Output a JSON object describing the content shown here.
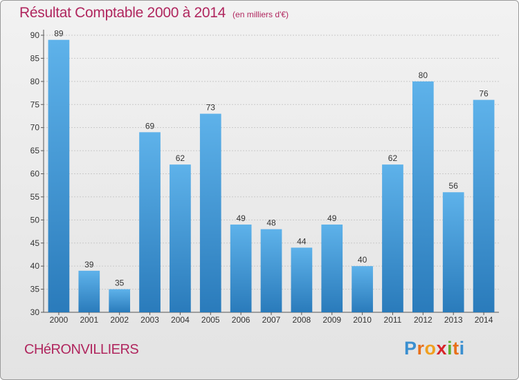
{
  "header": {
    "title": "Résultat Comptable 2000 à 2014",
    "subtitle": "(en milliers d'€)"
  },
  "footer": {
    "commune": "CHéRONVILLIERS",
    "logo_letters": [
      "P",
      "r",
      "o",
      "x",
      "i",
      "t",
      "i"
    ]
  },
  "colors": {
    "title": "#b0265e",
    "bar_top": "#5eb2ea",
    "bar_bottom": "#2a7bbb",
    "logo": [
      "#3a8fd0",
      "#e8701a",
      "#f0a020",
      "#d8242a",
      "#60b030",
      "#e8701a",
      "#3a8fd0"
    ]
  },
  "chart_data": {
    "type": "bar",
    "title": "Résultat Comptable 2000 à 2014",
    "ylabel": "en milliers d'€",
    "xlabel": "",
    "categories": [
      "2000",
      "2001",
      "2002",
      "2003",
      "2004",
      "2005",
      "2006",
      "2007",
      "2008",
      "2009",
      "2010",
      "2011",
      "2012",
      "2013",
      "2014"
    ],
    "values": [
      89,
      39,
      35,
      69,
      62,
      73,
      49,
      48,
      44,
      49,
      40,
      62,
      80,
      56,
      76
    ],
    "ylim": [
      30,
      90
    ],
    "yticks": [
      30,
      35,
      40,
      45,
      50,
      55,
      60,
      65,
      70,
      75,
      80,
      85,
      90
    ],
    "grid": true
  }
}
